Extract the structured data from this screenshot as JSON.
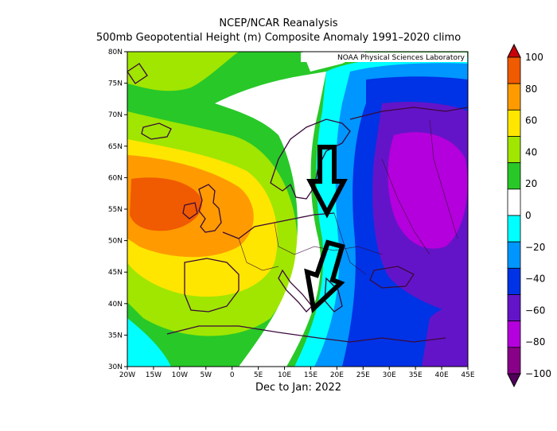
{
  "header": {
    "title": "NCEP/NCAR Reanalysis",
    "subtitle": "500mb Geopotential Height (m) Composite Anomaly 1991–2020 climo"
  },
  "map": {
    "credit": "NOAA Physical Sciences Laboratory",
    "period_label": "Dec to Jan: 2022",
    "lat_labels": [
      "80N",
      "75N",
      "70N",
      "65N",
      "60N",
      "55N",
      "50N",
      "45N",
      "40N",
      "35N",
      "30N"
    ],
    "lon_labels": [
      "20W",
      "15W",
      "10W",
      "5W",
      "0",
      "5E",
      "10E",
      "15E",
      "20E",
      "25E",
      "30E",
      "35E",
      "40E",
      "45E"
    ]
  },
  "colorbar": {
    "labels": [
      "100",
      "80",
      "60",
      "40",
      "20",
      "0",
      "−20",
      "−40",
      "−60",
      "−80",
      "−100"
    ],
    "colors": [
      "#c8000a",
      "#f05a00",
      "#ff9b00",
      "#ffe600",
      "#a0e600",
      "#28c828",
      "#ffffff",
      "#00ffff",
      "#0096ff",
      "#0032e6",
      "#6414c8",
      "#b400dc",
      "#880088",
      "#50005a"
    ]
  },
  "annotations": {
    "arrows": [
      "arrow-down",
      "arrow-down-diagonal"
    ]
  }
}
